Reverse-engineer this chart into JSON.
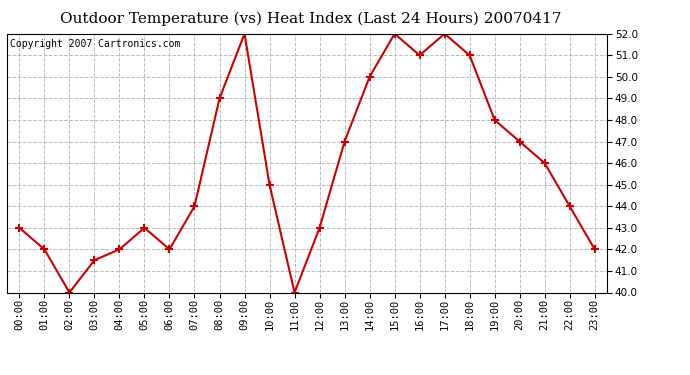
{
  "title": "Outdoor Temperature (vs) Heat Index (Last 24 Hours) 20070417",
  "copyright_text": "Copyright 2007 Cartronics.com",
  "hours": [
    "00:00",
    "01:00",
    "02:00",
    "03:00",
    "04:00",
    "05:00",
    "06:00",
    "07:00",
    "08:00",
    "09:00",
    "10:00",
    "11:00",
    "12:00",
    "13:00",
    "14:00",
    "15:00",
    "16:00",
    "17:00",
    "18:00",
    "19:00",
    "20:00",
    "21:00",
    "22:00",
    "23:00"
  ],
  "values": [
    43.0,
    42.0,
    40.0,
    41.5,
    42.0,
    43.0,
    42.0,
    44.0,
    49.0,
    52.0,
    45.0,
    40.0,
    43.0,
    47.0,
    50.0,
    52.0,
    51.0,
    52.0,
    51.0,
    48.0,
    47.0,
    46.0,
    44.0,
    42.0
  ],
  "line_color": "#cc0000",
  "marker": "+",
  "marker_size": 6,
  "line_width": 1.5,
  "ylim": [
    40.0,
    52.0
  ],
  "ytick_interval": 1.0,
  "grid_color": "#bbbbbb",
  "grid_style": "--",
  "bg_color": "#ffffff",
  "title_fontsize": 11,
  "copyright_fontsize": 7,
  "tick_fontsize": 7.5
}
